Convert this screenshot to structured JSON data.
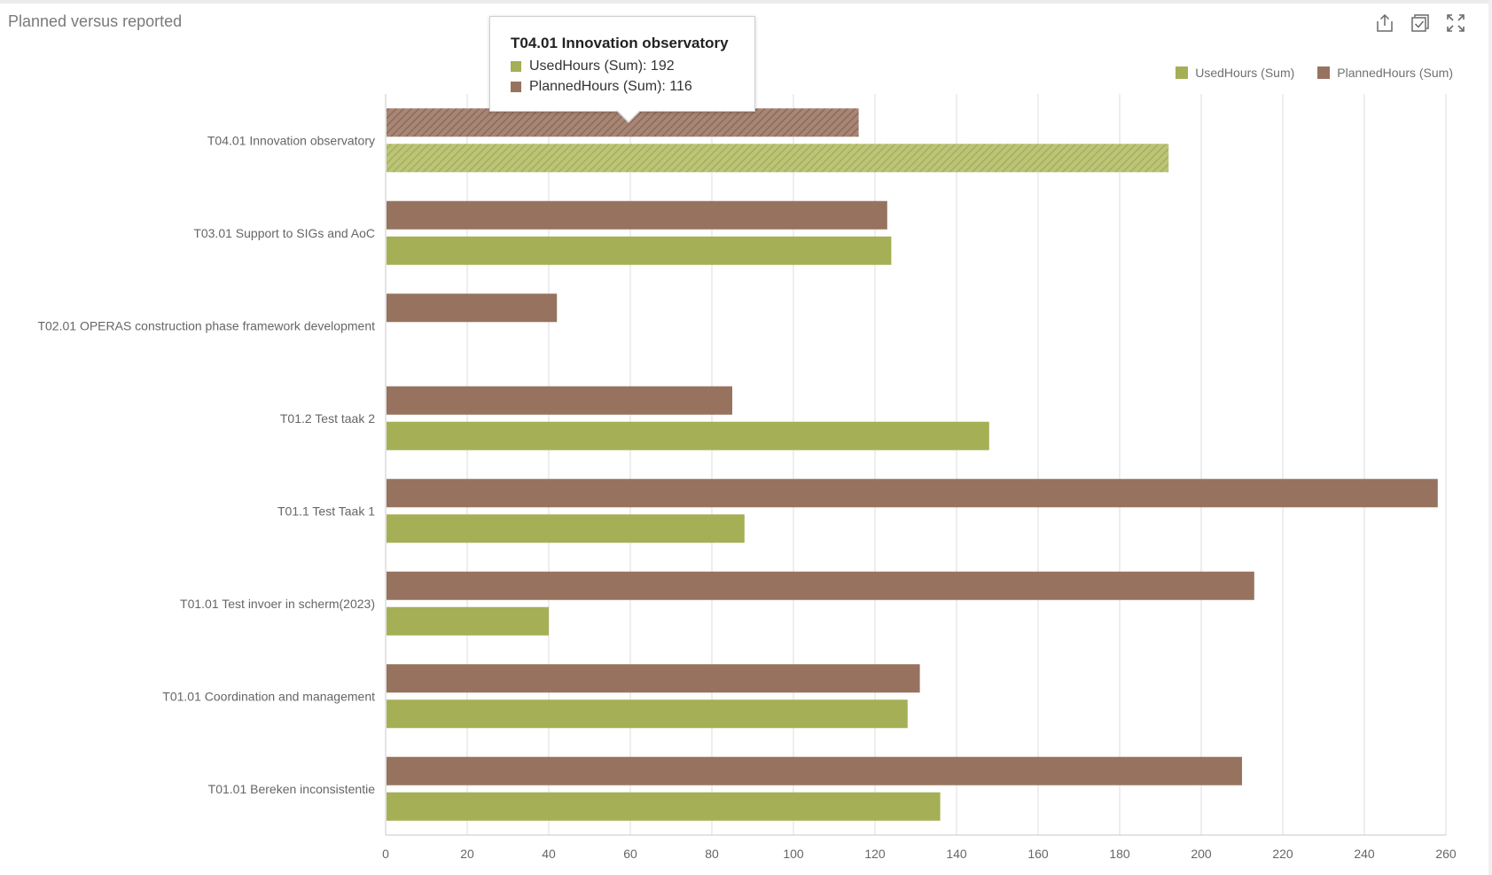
{
  "panel": {
    "title": "Planned versus reported"
  },
  "toolbar": [
    {
      "name": "export-button",
      "icon": "share-icon"
    },
    {
      "name": "select-button",
      "icon": "checkbox-icon"
    },
    {
      "name": "fullscreen-button",
      "icon": "expand-icon"
    }
  ],
  "colors": {
    "used": "#a5af55",
    "planned": "#97735f",
    "grid": "#dcdcdc",
    "axis": "#c8c8c8"
  },
  "tooltip": {
    "title": "T04.01 Innovation observatory",
    "rows": [
      {
        "label": "UsedHours (Sum): 192",
        "color": "#a5af55"
      },
      {
        "label": "PlannedHours (Sum): 116",
        "color": "#97735f"
      }
    ]
  },
  "chart_data": {
    "type": "bar",
    "orientation": "horizontal",
    "title": "Planned versus reported",
    "xlabel": "",
    "ylabel": "",
    "xlim": [
      0,
      260
    ],
    "ticks": [
      0,
      20,
      40,
      60,
      80,
      100,
      120,
      140,
      160,
      180,
      200,
      220,
      240,
      260
    ],
    "grid": true,
    "legend_position": "top-right",
    "highlighted_category": "T04.01 Innovation observatory",
    "categories": [
      "T04.01 Innovation observatory",
      "T03.01 Support to SIGs and AoC",
      "T02.01 OPERAS construction phase framework development",
      "T01.2 Test taak 2",
      "T01.1 Test Taak 1",
      "T01.01 Test invoer in scherm(2023)",
      "T01.01 Coordination and management",
      "T01.01 Bereken inconsistentie"
    ],
    "series": [
      {
        "name": "PlannedHours (Sum)",
        "color": "#97735f",
        "values": [
          116,
          123,
          42,
          85,
          258,
          213,
          131,
          210
        ]
      },
      {
        "name": "UsedHours (Sum)",
        "color": "#a5af55",
        "values": [
          192,
          124,
          0,
          148,
          88,
          40,
          128,
          136
        ]
      }
    ],
    "legend": [
      {
        "name": "UsedHours (Sum)",
        "color": "#a5af55"
      },
      {
        "name": "PlannedHours (Sum)",
        "color": "#97735f"
      }
    ]
  }
}
